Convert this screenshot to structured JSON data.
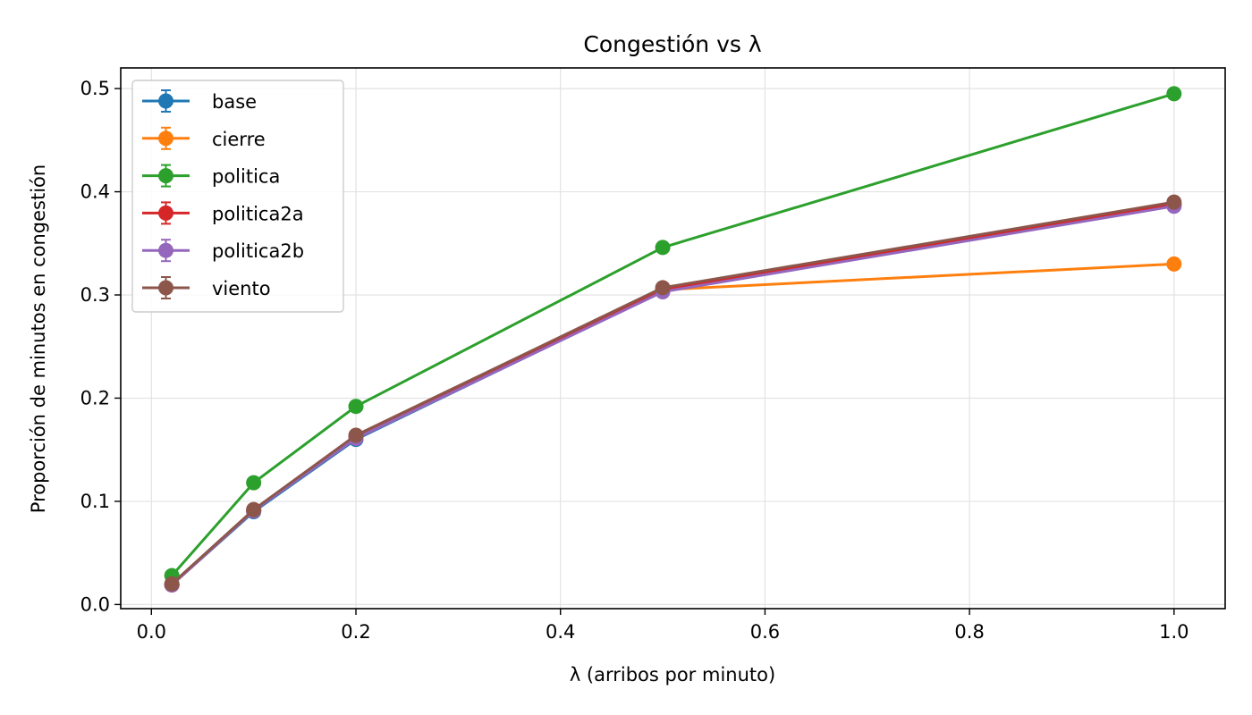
{
  "chart_data": {
    "type": "line",
    "title": "Congestión vs λ",
    "xlabel": "λ (arribos por minuto)",
    "ylabel": "Proporción de minutos en congestión",
    "xlim": [
      -0.03,
      1.05
    ],
    "ylim": [
      -0.004,
      0.52
    ],
    "xticks": [
      0.0,
      0.2,
      0.4,
      0.6,
      0.8,
      1.0
    ],
    "xtick_labels": [
      "0.0",
      "0.2",
      "0.4",
      "0.6",
      "0.8",
      "1.0"
    ],
    "yticks": [
      0.0,
      0.1,
      0.2,
      0.3,
      0.4,
      0.5
    ],
    "ytick_labels": [
      "0.0",
      "0.1",
      "0.2",
      "0.3",
      "0.4",
      "0.5"
    ],
    "grid": true,
    "legend_position": "top-left",
    "x": [
      0.02,
      0.1,
      0.2,
      0.5,
      1.0
    ],
    "series": [
      {
        "name": "base",
        "color": "#1f77b4",
        "values": [
          0.019,
          0.09,
          0.16,
          0.304,
          0.387
        ]
      },
      {
        "name": "cierre",
        "color": "#ff7f0e",
        "values": [
          0.019,
          0.091,
          0.162,
          0.305,
          0.33
        ]
      },
      {
        "name": "politica",
        "color": "#2ca02c",
        "values": [
          0.028,
          0.118,
          0.192,
          0.346,
          0.495
        ]
      },
      {
        "name": "politica2a",
        "color": "#d62728",
        "values": [
          0.019,
          0.091,
          0.162,
          0.305,
          0.388
        ]
      },
      {
        "name": "politica2b",
        "color": "#9467bd",
        "values": [
          0.019,
          0.091,
          0.161,
          0.303,
          0.386
        ]
      },
      {
        "name": "viento",
        "color": "#8c564b",
        "values": [
          0.02,
          0.092,
          0.164,
          0.307,
          0.39
        ]
      }
    ]
  }
}
